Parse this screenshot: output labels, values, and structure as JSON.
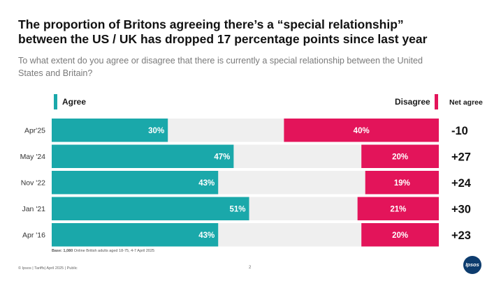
{
  "header": {
    "title_line1": "The proportion of Britons agreeing there’s a “special relationship”",
    "title_line2": "between the US / UK has dropped 17 percentage points since last year",
    "subtitle": "To what extent do you agree or disagree that there is currently a special relationship between the United States and Britain?"
  },
  "legend": {
    "agree": "Agree",
    "disagree": "Disagree",
    "net_agree": "Net agree"
  },
  "colors": {
    "agree": "#1aa8aa",
    "disagree": "#e3145a",
    "neutral": "#efefef"
  },
  "chart_data": {
    "type": "bar",
    "orientation": "horizontal-diverging",
    "categories": [
      "Apr'25",
      "May '24",
      "Nov '22",
      "Jan '21",
      "Apr '16"
    ],
    "series": [
      {
        "name": "Agree",
        "values": [
          30,
          47,
          43,
          51,
          43
        ]
      },
      {
        "name": "Disagree",
        "values": [
          40,
          20,
          19,
          21,
          20
        ]
      }
    ],
    "agree_labels": [
      "30%",
      "47%",
      "43%",
      "51%",
      "43%"
    ],
    "disagree_labels": [
      "40%",
      "20%",
      "19%",
      "21%",
      "20%"
    ],
    "net_agree": [
      "-10",
      "+27",
      "+24",
      "+30",
      "+23"
    ],
    "title": "The proportion of Britons agreeing there’s a “special relationship” between the US / UK has dropped 17 percentage points since last year",
    "xlim": [
      0,
      100
    ],
    "xlabel": "",
    "ylabel": ""
  },
  "base_note": {
    "label": "Base: 1,080",
    "text": " Online British adults aged 18-75, 4-7 April 2025"
  },
  "footer": {
    "copyright": "© Ipsos | Tariffs| April 2025 | Public",
    "page_number": "2",
    "logo": "Ipsos"
  }
}
